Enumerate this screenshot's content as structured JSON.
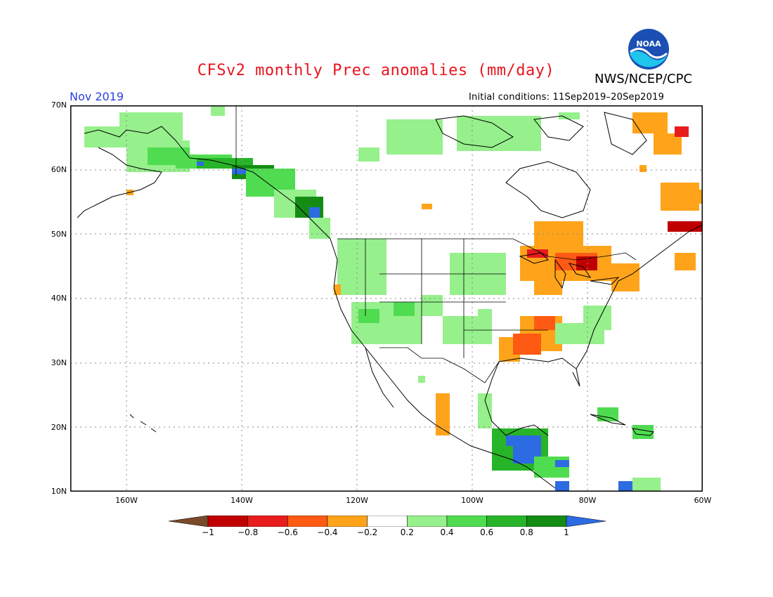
{
  "title": "CFSv2 monthly Prec anomalies (mm/day)",
  "agency": "NWS/NCEP/CPC",
  "logo_text": "NOAA",
  "period": "Nov 2019",
  "initial_conditions": "Initial conditions: 11Sep2019–20Sep2019",
  "lat_labels": [
    "70N",
    "60N",
    "50N",
    "40N",
    "30N",
    "20N",
    "10N"
  ],
  "lon_labels": [
    "160W",
    "140W",
    "120W",
    "100W",
    "80W",
    "60W"
  ],
  "colorbar": {
    "ticks": [
      "−1",
      "−0.8",
      "−0.6",
      "−0.4",
      "−0.2",
      "0.2",
      "0.4",
      "0.6",
      "0.8",
      "1"
    ],
    "colors": [
      "#7b4a2a",
      "#c00000",
      "#e81c1c",
      "#ff5a14",
      "#ffa41a",
      "#ffffff",
      "#96f08c",
      "#50dc50",
      "#28b428",
      "#148c14",
      "#2d6be3"
    ]
  },
  "map": {
    "projection": "lat-lon",
    "lon_range": [
      -170,
      -60
    ],
    "lat_range": [
      10,
      70
    ],
    "grid": "dotted every 20 lon, 10 lat"
  }
}
